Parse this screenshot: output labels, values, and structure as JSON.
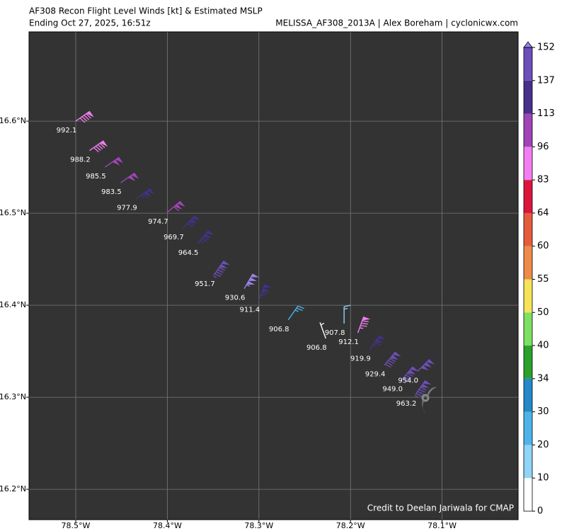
{
  "chart_data": {
    "type": "wind_barb_map",
    "title": "AF308 Recon Flight Level Winds [kt] & Estimated MSLP",
    "subtitle": "Ending Oct 27, 2025, 16:51z",
    "source": "MELISSA_AF308_2013A | Alex Boreham | cyclonicwx.com",
    "credit": "Credit to Deelan Jariwala for CMAP",
    "xlim": [
      -78.551,
      -78.017
    ],
    "ylim": [
      16.167,
      16.697
    ],
    "xticks": [
      {
        "value": -78.5,
        "label": "78.5°W"
      },
      {
        "value": -78.4,
        "label": "78.4°W"
      },
      {
        "value": -78.3,
        "label": "78.3°W"
      },
      {
        "value": -78.2,
        "label": "78.2°W"
      },
      {
        "value": -78.1,
        "label": "78.1°W"
      }
    ],
    "yticks": [
      {
        "value": 16.2,
        "label": "16.2°N"
      },
      {
        "value": 16.3,
        "label": "16.3°N"
      },
      {
        "value": 16.4,
        "label": "16.4°N"
      },
      {
        "value": 16.5,
        "label": "16.5°N"
      },
      {
        "value": 16.6,
        "label": "16.6°N"
      }
    ],
    "grid": true,
    "colorbar": {
      "ticks": [
        0,
        10,
        20,
        30,
        34,
        40,
        50,
        55,
        60,
        64,
        83,
        96,
        113,
        137,
        152
      ],
      "colors": [
        "#ffffff",
        "#90d4f7",
        "#4eb3e8",
        "#2389c9",
        "#2ca02c",
        "#7ce063",
        "#f5e35a",
        "#ee8a4a",
        "#e55c3a",
        "#dc143c",
        "#f27ef0",
        "#a144b8",
        "#45318a",
        "#6c4fb8",
        "#9a82e8"
      ]
    },
    "observations": [
      {
        "lon": -78.5,
        "lat": 16.6,
        "speed": 90,
        "direction": 55,
        "mslp": "992.1"
      },
      {
        "lon": -78.485,
        "lat": 16.568,
        "speed": 90,
        "direction": 55,
        "mslp": "988.2"
      },
      {
        "lon": -78.468,
        "lat": 16.55,
        "speed": 100,
        "direction": 55,
        "mslp": "985.5"
      },
      {
        "lon": -78.451,
        "lat": 16.533,
        "speed": 100,
        "direction": 55,
        "mslp": "983.5"
      },
      {
        "lon": -78.434,
        "lat": 16.516,
        "speed": 115,
        "direction": 55,
        "mslp": "977.9"
      },
      {
        "lon": -78.4,
        "lat": 16.501,
        "speed": 110,
        "direction": 50,
        "mslp": "974.7"
      },
      {
        "lon": -78.383,
        "lat": 16.484,
        "speed": 120,
        "direction": 45,
        "mslp": "969.7"
      },
      {
        "lon": -78.367,
        "lat": 16.467,
        "speed": 125,
        "direction": 40,
        "mslp": "964.5"
      },
      {
        "lon": -78.349,
        "lat": 16.433,
        "speed": 145,
        "direction": 35,
        "mslp": "951.7"
      },
      {
        "lon": -78.316,
        "lat": 16.418,
        "speed": 155,
        "direction": 30,
        "mslp": "930.6"
      },
      {
        "lon": -78.3,
        "lat": 16.405,
        "speed": 115,
        "direction": 20,
        "mslp": "911.4"
      },
      {
        "lon": -78.268,
        "lat": 16.384,
        "speed": 25,
        "direction": 35,
        "mslp": "906.8"
      },
      {
        "lon": -78.227,
        "lat": 16.364,
        "speed": 5,
        "direction": 340,
        "mslp": "906.8"
      },
      {
        "lon": -78.207,
        "lat": 16.38,
        "speed": 15,
        "direction": 0,
        "mslp": "907.8"
      },
      {
        "lon": -78.192,
        "lat": 16.37,
        "speed": 85,
        "direction": 20,
        "mslp": "912.1"
      },
      {
        "lon": -78.179,
        "lat": 16.352,
        "speed": 115,
        "direction": 35,
        "mslp": "919.9"
      },
      {
        "lon": -78.163,
        "lat": 16.335,
        "speed": 140,
        "direction": 40,
        "mslp": "929.4"
      },
      {
        "lon": -78.144,
        "lat": 16.319,
        "speed": 140,
        "direction": 40,
        "mslp": "949.0"
      },
      {
        "lon": -78.127,
        "lat": 16.328,
        "speed": 150,
        "direction": 45,
        "mslp": "954.0"
      },
      {
        "lon": -78.129,
        "lat": 16.303,
        "speed": 145,
        "direction": 35,
        "mslp": "963.2"
      }
    ]
  }
}
